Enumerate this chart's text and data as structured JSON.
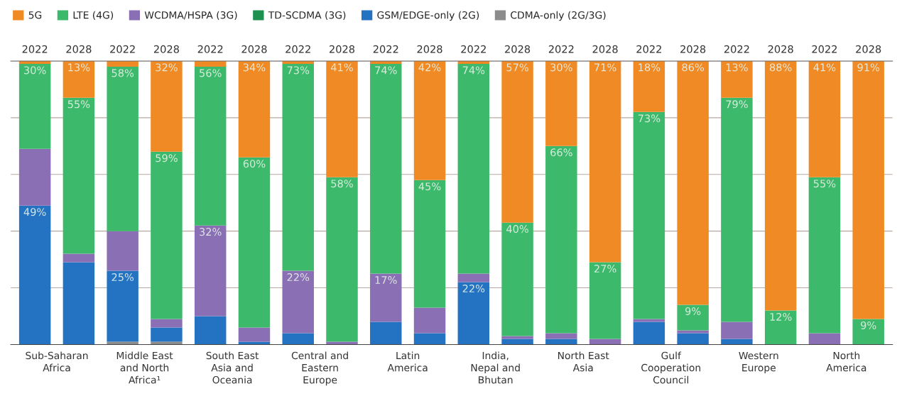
{
  "chart_data": {
    "type": "bar",
    "stacked": true,
    "categories": [
      "2022",
      "2028",
      "2022",
      "2028",
      "2022",
      "2028",
      "2022",
      "2028",
      "2022",
      "2028",
      "2022",
      "2028",
      "2022",
      "2028",
      "2022",
      "2028",
      "2022",
      "2028",
      "2022",
      "2028"
    ],
    "series": [
      {
        "name": "CDMA-only (2G/3G)",
        "color": "#8c8c8c",
        "values": [
          0,
          0,
          1,
          1,
          0,
          0,
          0,
          0,
          0,
          0,
          0,
          0,
          0,
          0,
          0,
          0,
          0,
          0,
          0,
          0
        ]
      },
      {
        "name": "GSM/EDGE-only (2G)",
        "color": "#2473c2",
        "values": [
          49,
          29,
          25,
          5,
          10,
          1,
          4,
          0,
          8,
          4,
          22,
          2,
          2,
          0,
          8,
          4,
          2,
          0,
          0,
          0
        ],
        "value_labels": [
          "49%",
          null,
          "25%",
          null,
          null,
          null,
          null,
          null,
          null,
          null,
          "22%",
          null,
          null,
          null,
          null,
          null,
          null,
          null,
          null,
          null
        ]
      },
      {
        "name": "TD-SCDMA (3G)",
        "color": "#1e9150",
        "values": [
          0,
          0,
          0,
          0,
          0,
          0,
          0,
          0,
          0,
          0,
          0,
          0,
          0,
          0,
          0,
          0,
          0,
          0,
          0,
          0
        ]
      },
      {
        "name": "WCDMA/HSPA (3G)",
        "color": "#8a6fb5",
        "values": [
          20,
          3,
          14,
          3,
          32,
          5,
          22,
          1,
          17,
          9,
          3,
          1,
          2,
          2,
          1,
          1,
          6,
          0,
          4,
          0
        ],
        "value_labels": [
          null,
          null,
          null,
          null,
          "32%",
          null,
          "22%",
          null,
          "17%",
          null,
          null,
          null,
          null,
          null,
          null,
          null,
          null,
          null,
          null,
          null
        ]
      },
      {
        "name": "LTE (4G)",
        "color": "#3cb96a",
        "values": [
          30,
          55,
          58,
          59,
          56,
          60,
          73,
          58,
          74,
          45,
          74,
          40,
          66,
          27,
          73,
          9,
          79,
          12,
          55,
          9
        ],
        "value_labels": [
          "30%",
          "55%",
          "58%",
          "59%",
          "56%",
          "60%",
          "73%",
          "58%",
          "74%",
          "45%",
          "74%",
          "40%",
          "66%",
          "27%",
          "73%",
          "9%",
          "79%",
          "12%",
          "55%",
          "9%"
        ]
      },
      {
        "name": "5G",
        "color": "#f08a24",
        "values": [
          1,
          13,
          2,
          32,
          2,
          34,
          1,
          41,
          1,
          42,
          1,
          57,
          30,
          71,
          18,
          86,
          13,
          88,
          41,
          91
        ],
        "value_labels": [
          null,
          "13%",
          null,
          "32%",
          null,
          "34%",
          null,
          "41%",
          null,
          "42%",
          null,
          "57%",
          "30%",
          "71%",
          "18%",
          "86%",
          "13%",
          "88%",
          "41%",
          "91%"
        ]
      }
    ],
    "annotations": [
      "Sub-Saharan\nAfrica",
      "Middle East\nand North\nAfrica¹",
      "South East\nAsia and\nOceania",
      "Central and\nEastern\nEurope",
      "Latin\nAmerica",
      "India,\nNepal and\nBhutan",
      "North East\nAsia",
      "Gulf\nCooperation\nCouncil",
      "Western\nEurope",
      "North\nAmerica"
    ],
    "ylim": [
      0,
      100
    ],
    "yticks": [
      {
        "value": 0,
        "label": null
      },
      {
        "value": 20,
        "label": null
      },
      {
        "value": 40,
        "label": null
      },
      {
        "value": 60,
        "label": null
      },
      {
        "value": 80,
        "label": null
      },
      {
        "value": 100,
        "label": null
      }
    ],
    "tick_labels": "x",
    "grid": "y",
    "legend": "top"
  }
}
